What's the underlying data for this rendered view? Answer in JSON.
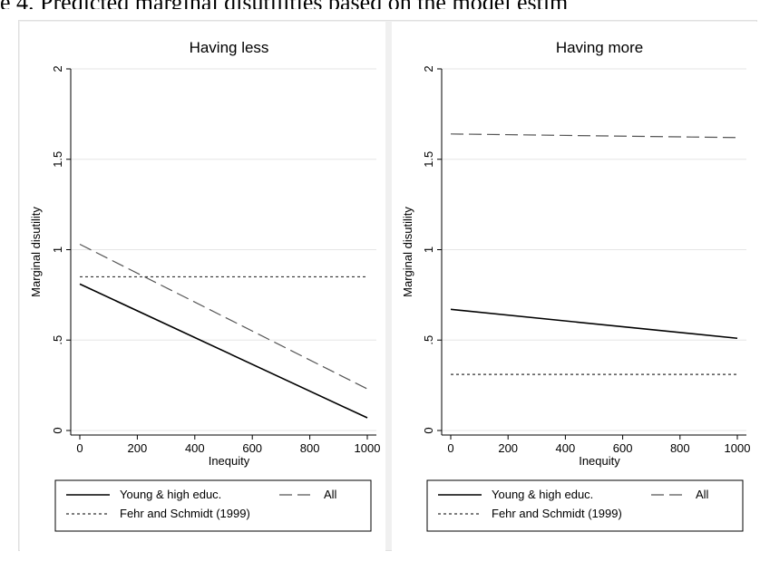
{
  "caption": "e 4. Predicted marginal disutilities based on the model estim",
  "chart_data": [
    {
      "type": "line",
      "title": "Having less",
      "xlabel": "Inequity",
      "ylabel": "Marginal disutility",
      "xlim": [
        0,
        1000
      ],
      "ylim": [
        0,
        2
      ],
      "xticks": [
        "0",
        "200",
        "400",
        "600",
        "800",
        "1000"
      ],
      "yticks": [
        "0",
        ".5",
        "1",
        "1.5",
        "2"
      ],
      "grid": "horizontal",
      "series": [
        {
          "name": "Young & high educ.",
          "style": "solid",
          "color": "#000000",
          "x": [
            0,
            1000
          ],
          "y": [
            0.81,
            0.07
          ]
        },
        {
          "name": "All",
          "style": "dashed",
          "color": "#555555",
          "x": [
            0,
            1000
          ],
          "y": [
            1.03,
            0.23
          ]
        },
        {
          "name": "Fehr and Schmidt (1999)",
          "style": "dotted",
          "color": "#333333",
          "x": [
            0,
            1000
          ],
          "y": [
            0.85,
            0.85
          ]
        }
      ]
    },
    {
      "type": "line",
      "title": "Having more",
      "xlabel": "Inequity",
      "ylabel": "Marginal disutility",
      "xlim": [
        0,
        1000
      ],
      "ylim": [
        0,
        2
      ],
      "xticks": [
        "0",
        "200",
        "400",
        "600",
        "800",
        "1000"
      ],
      "yticks": [
        "0",
        ".5",
        "1",
        "1.5",
        "2"
      ],
      "grid": "horizontal",
      "series": [
        {
          "name": "Young & high educ.",
          "style": "solid",
          "color": "#000000",
          "x": [
            0,
            1000
          ],
          "y": [
            0.67,
            0.51
          ]
        },
        {
          "name": "All",
          "style": "dashed",
          "color": "#555555",
          "x": [
            0,
            1000
          ],
          "y": [
            1.64,
            1.62
          ]
        },
        {
          "name": "Fehr and Schmidt (1999)",
          "style": "dotted",
          "color": "#333333",
          "x": [
            0,
            1000
          ],
          "y": [
            0.31,
            0.31
          ]
        }
      ]
    }
  ],
  "legend": {
    "placement": "bottom",
    "items": [
      "Young & high educ.",
      "All",
      "Fehr and Schmidt (1999)"
    ]
  }
}
